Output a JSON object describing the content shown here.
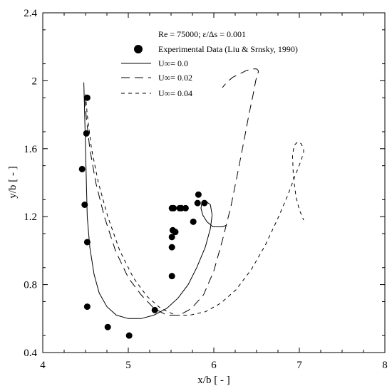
{
  "chart_data": {
    "type": "scatter",
    "title": "Re = 75000; ε/Δs = 0.001",
    "xlabel": "x/b [ - ]",
    "ylabel": "y/b [ - ]",
    "xlim": [
      4,
      8
    ],
    "ylim": [
      0.4,
      2.4
    ],
    "x_ticks": [
      4,
      5,
      6,
      7,
      8
    ],
    "x_tick_labels": [
      "4",
      "5",
      "6",
      "7",
      "8"
    ],
    "y_ticks": [
      0.4,
      0.8,
      1.2,
      1.6,
      2.0,
      2.4
    ],
    "y_tick_labels": [
      "0.4",
      "0.8",
      "1.2",
      "1.6",
      "2",
      "2.4"
    ],
    "grid": false,
    "legend_placement": "top-center",
    "legend": [
      {
        "label": "Experimental Data (Liu & Srnsky, 1990)",
        "style": "filled-circle"
      },
      {
        "label": "U∞= 0.0",
        "style": "solid"
      },
      {
        "label": "U∞= 0.02",
        "style": "long-dash"
      },
      {
        "label": "U∞= 0.04",
        "style": "short-dash"
      }
    ],
    "series": [
      {
        "name": "Experimental Data (Liu & Srnsky, 1990)",
        "kind": "points",
        "x": [
          4.52,
          4.51,
          4.46,
          4.49,
          4.52,
          4.52,
          4.76,
          5.01,
          5.31,
          5.51,
          5.51,
          5.51,
          5.52,
          5.55,
          5.53,
          5.51,
          5.6,
          5.62,
          5.67,
          5.76,
          5.81,
          5.82,
          5.89
        ],
        "y": [
          1.9,
          1.69,
          1.48,
          1.27,
          1.05,
          0.67,
          0.55,
          0.5,
          0.65,
          0.85,
          1.02,
          1.08,
          1.12,
          1.11,
          1.25,
          1.25,
          1.25,
          1.25,
          1.25,
          1.17,
          1.28,
          1.33,
          1.28
        ]
      },
      {
        "name": "U∞= 0.0",
        "kind": "line",
        "dash": "solid",
        "x": [
          4.48,
          4.49,
          4.5,
          4.51,
          4.52,
          4.55,
          4.6,
          4.66,
          4.75,
          4.86,
          5.0,
          5.15,
          5.3,
          5.45,
          5.58,
          5.7,
          5.8,
          5.9,
          5.96,
          5.98,
          5.96,
          5.91,
          5.86,
          5.85,
          5.87,
          5.92,
          5.99,
          6.06,
          6.1,
          6.15
        ],
        "y": [
          1.99,
          1.8,
          1.6,
          1.4,
          1.2,
          1.02,
          0.86,
          0.75,
          0.67,
          0.62,
          0.6,
          0.6,
          0.62,
          0.66,
          0.72,
          0.8,
          0.9,
          1.02,
          1.13,
          1.21,
          1.27,
          1.29,
          1.28,
          1.25,
          1.21,
          1.17,
          1.14,
          1.14,
          1.14,
          1.15
        ]
      },
      {
        "name": "U∞= 0.02",
        "kind": "line",
        "dash": "long-dash",
        "x": [
          4.49,
          4.51,
          4.55,
          4.62,
          4.72,
          4.85,
          5.0,
          5.15,
          5.3,
          5.45,
          5.6,
          5.74,
          5.88,
          6.0,
          6.1,
          6.2,
          6.28,
          6.35,
          6.41,
          6.46,
          6.49,
          6.51,
          6.52,
          6.52,
          6.5,
          6.45,
          6.38,
          6.3,
          6.22,
          6.15,
          6.1
        ],
        "y": [
          1.9,
          1.78,
          1.6,
          1.4,
          1.2,
          1.0,
          0.84,
          0.74,
          0.66,
          0.62,
          0.62,
          0.66,
          0.74,
          0.88,
          1.06,
          1.26,
          1.46,
          1.64,
          1.8,
          1.92,
          2.0,
          2.04,
          2.05,
          2.06,
          2.07,
          2.07,
          2.06,
          2.04,
          2.02,
          1.99,
          1.96
        ]
      },
      {
        "name": "U∞= 0.04",
        "kind": "line",
        "dash": "short-dash",
        "x": [
          4.5,
          4.52,
          4.57,
          4.65,
          4.76,
          4.9,
          5.06,
          5.22,
          5.38,
          5.55,
          5.72,
          5.9,
          6.08,
          6.26,
          6.44,
          6.6,
          6.74,
          6.86,
          6.95,
          7.02,
          7.05,
          7.05,
          7.02,
          6.98,
          6.94,
          6.92,
          6.93,
          6.96,
          7.0,
          7.05
        ],
        "y": [
          1.92,
          1.8,
          1.6,
          1.4,
          1.2,
          1.0,
          0.84,
          0.73,
          0.66,
          0.62,
          0.62,
          0.64,
          0.69,
          0.77,
          0.89,
          1.03,
          1.18,
          1.32,
          1.44,
          1.53,
          1.58,
          1.6,
          1.63,
          1.64,
          1.62,
          1.56,
          1.44,
          1.32,
          1.24,
          1.18
        ]
      }
    ]
  }
}
